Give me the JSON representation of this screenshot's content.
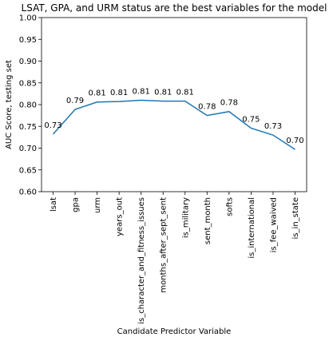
{
  "chart_data": {
    "type": "line",
    "title": "LSAT, GPA, and URM status are the best variables for the model",
    "xlabel": "Candidate Predictor Variable",
    "ylabel": "AUC Score, testing set",
    "ylim": [
      0.6,
      1.0
    ],
    "yticks": [
      "0.60",
      "0.65",
      "0.70",
      "0.75",
      "0.80",
      "0.85",
      "0.90",
      "0.95",
      "1.00"
    ],
    "grid": false,
    "legend": "none",
    "line_color": "#1f77b4",
    "categories": [
      "lsat",
      "gpa",
      "urm",
      "years_out",
      "is_character_and_fitness_issues",
      "months_after_sept_sent",
      "is_military",
      "sent_month",
      "softs",
      "is_international",
      "is_fee_waived",
      "is_in_state"
    ],
    "values": [
      0.732,
      0.789,
      0.806,
      0.807,
      0.81,
      0.808,
      0.808,
      0.775,
      0.784,
      0.746,
      0.73,
      0.697
    ],
    "value_labels": [
      "0.73",
      "0.79",
      "0.81",
      "0.81",
      "0.81",
      "0.81",
      "0.81",
      "0.78",
      "0.78",
      "0.75",
      "0.73",
      "0.70"
    ]
  }
}
